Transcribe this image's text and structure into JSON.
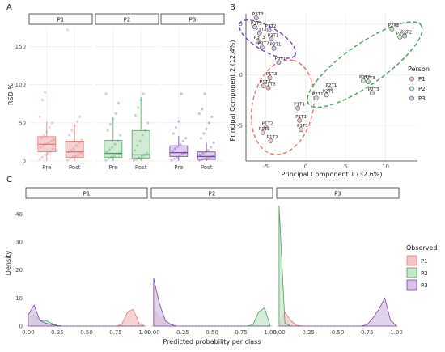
{
  "colors": {
    "P1": "#e07a7a",
    "P2": "#4f9e5f",
    "P3": "#7a43a8",
    "P1_light": "#f3c4c4",
    "P2_light": "#c7e6cb",
    "P3_light": "#d6c2e6",
    "grid": "#ebebeb",
    "strip_bg": "#ffffff",
    "frame": "#333333"
  },
  "panel_letters": {
    "a": "A",
    "b": "B",
    "c": "C"
  },
  "chart_data": [
    {
      "id": "A",
      "type": "box",
      "ylabel": "RSD %",
      "xlabel": "",
      "ylim": [
        0,
        175
      ],
      "yticks": [
        0,
        50,
        100,
        150
      ],
      "facets": [
        "P1",
        "P2",
        "P3"
      ],
      "categories": [
        "Pre",
        "Post"
      ],
      "boxes": [
        {
          "facet": "P1",
          "group": "Pre",
          "q1": 12,
          "median": 22,
          "q3": 32,
          "lower": 0,
          "upper": 52,
          "points": [
            2,
            5,
            8,
            10,
            12,
            15,
            18,
            20,
            22,
            24,
            26,
            28,
            30,
            34,
            38,
            44,
            50,
            58,
            80,
            90
          ]
        },
        {
          "facet": "P1",
          "group": "Post",
          "q1": 5,
          "median": 12,
          "q3": 26,
          "lower": 0,
          "upper": 48,
          "points": [
            1,
            3,
            5,
            6,
            8,
            10,
            12,
            14,
            16,
            20,
            24,
            28,
            34,
            40,
            46,
            52,
            58,
            172
          ]
        },
        {
          "facet": "P2",
          "group": "Pre",
          "q1": 5,
          "median": 10,
          "q3": 27,
          "lower": 0,
          "upper": 56,
          "points": [
            1,
            3,
            5,
            7,
            9,
            10,
            12,
            15,
            18,
            22,
            27,
            34,
            40,
            48,
            56,
            62,
            76,
            88
          ]
        },
        {
          "facet": "P2",
          "group": "Post",
          "q1": 4,
          "median": 8,
          "q3": 40,
          "lower": 0,
          "upper": 84,
          "points": [
            1,
            2,
            4,
            6,
            8,
            10,
            14,
            20,
            26,
            34,
            40,
            50,
            60,
            70,
            80,
            88
          ]
        },
        {
          "facet": "P3",
          "group": "Pre",
          "q1": 6,
          "median": 11,
          "q3": 20,
          "lower": 0,
          "upper": 33,
          "points": [
            1,
            3,
            5,
            7,
            9,
            11,
            13,
            16,
            19,
            22,
            26,
            30,
            36,
            44,
            52,
            88
          ]
        },
        {
          "facet": "P3",
          "group": "Post",
          "q1": 2,
          "median": 6,
          "q3": 12,
          "lower": 0,
          "upper": 24,
          "points": [
            1,
            2,
            3,
            4,
            5,
            6,
            8,
            10,
            12,
            14,
            18,
            24,
            30,
            36,
            42,
            50,
            58,
            62,
            68,
            88
          ]
        }
      ]
    },
    {
      "id": "B",
      "type": "scatter",
      "xlabel": "Principal Component 1 (32.6%)",
      "ylabel": "Principal Component 2 (12.4%)",
      "xlim": [
        -7.5,
        14
      ],
      "ylim": [
        -8.5,
        6
      ],
      "xticks": [
        -5,
        0,
        5,
        10
      ],
      "yticks": [
        -5,
        0,
        5
      ],
      "legend_title": "Person",
      "legend_position": "right",
      "series": [
        {
          "name": "P1",
          "points": [
            {
              "x": -4.5,
              "y": -0.3,
              "label": "P1T3"
            },
            {
              "x": -5.3,
              "y": -1.1,
              "label": "P1T2"
            },
            {
              "x": -4.7,
              "y": -1.3,
              "label": "P1T3"
            },
            {
              "x": -1.0,
              "y": -3.3,
              "label": "P1T1"
            },
            {
              "x": -0.8,
              "y": -4.5,
              "label": "P1T1"
            },
            {
              "x": -0.6,
              "y": -5.4,
              "label": "P1T1"
            },
            {
              "x": -5.0,
              "y": -5.2,
              "label": "P1T2"
            },
            {
              "x": -5.4,
              "y": -5.7,
              "label": "P1T2"
            },
            {
              "x": -4.4,
              "y": -6.5,
              "label": "P1T2"
            }
          ]
        },
        {
          "name": "P2",
          "points": [
            {
              "x": 10.8,
              "y": 4.5,
              "label": "P2T2"
            },
            {
              "x": 11.8,
              "y": 3.7,
              "label": "P2T2"
            },
            {
              "x": 12.4,
              "y": 3.8,
              "label": "P2T2"
            },
            {
              "x": 7.2,
              "y": -0.6,
              "label": "P2T3"
            },
            {
              "x": 7.8,
              "y": -0.7,
              "label": "P2T3"
            },
            {
              "x": 8.3,
              "y": -1.8,
              "label": "P2T3"
            },
            {
              "x": 3.0,
              "y": -1.4,
              "label": "P2T1"
            },
            {
              "x": 2.6,
              "y": -2.0,
              "label": "P2T1"
            },
            {
              "x": 1.3,
              "y": -2.3,
              "label": "P2T1"
            }
          ]
        },
        {
          "name": "P3",
          "points": [
            {
              "x": -6.2,
              "y": 5.6,
              "label": "P3T3"
            },
            {
              "x": -6.4,
              "y": 4.7,
              "label": "P3T3"
            },
            {
              "x": -5.8,
              "y": 4.1,
              "label": "P3T2"
            },
            {
              "x": -4.6,
              "y": 4.4,
              "label": "P3T2"
            },
            {
              "x": -4.3,
              "y": 3.5,
              "label": "P3T1"
            },
            {
              "x": -4.0,
              "y": 2.6,
              "label": "P3T1"
            },
            {
              "x": -3.4,
              "y": 1.2,
              "label": "P3T1"
            },
            {
              "x": -6.0,
              "y": 3.3,
              "label": "P3T3"
            },
            {
              "x": -5.5,
              "y": 2.7,
              "label": "P3T2"
            }
          ]
        }
      ],
      "ellipses": [
        {
          "series": "P1",
          "cx": -2.9,
          "cy": -3.2,
          "rx": 6.0,
          "ry": 3.0,
          "angle": 78
        },
        {
          "series": "P2",
          "cx": 7.4,
          "cy": 1.0,
          "rx": 8.6,
          "ry": 2.0,
          "angle": 35
        },
        {
          "series": "P3",
          "cx": -4.8,
          "cy": 3.5,
          "rx": 4.0,
          "ry": 1.2,
          "angle": -30
        }
      ],
      "point_labels": [
        "P3T3",
        "P3T3",
        "P3T2",
        "P3T2",
        "P3T1",
        "P3T1",
        "P3T1",
        "P3T3",
        "P3T2",
        "P2T2",
        "P2T2",
        "P2T2",
        "P2T3",
        "P2T3",
        "P2T3",
        "P2T1",
        "P2T1",
        "P2T1",
        "P1T3",
        "P1T2",
        "P1T3",
        "P1T1",
        "P1T1",
        "P1T1",
        "P1T2",
        "P1T2",
        "P1T2"
      ]
    },
    {
      "id": "C",
      "type": "area",
      "xlabel": "Predicted probability per class",
      "ylabel": "Density",
      "xlim": [
        -0.02,
        1.02
      ],
      "ylim": [
        0,
        45
      ],
      "xticks": [
        0.0,
        0.25,
        0.5,
        0.75,
        1.0
      ],
      "xtick_labels": [
        "0.00",
        "0.25",
        "0.50",
        "0.75",
        "1.00"
      ],
      "yticks": [
        0,
        10,
        20,
        30,
        40
      ],
      "facets": [
        "P1",
        "P2",
        "P3"
      ],
      "legend_title": "Observed",
      "legend_position": "right",
      "series_names": [
        "P1",
        "P2",
        "P3"
      ],
      "x": [
        0.0,
        0.05,
        0.1,
        0.15,
        0.2,
        0.25,
        0.3,
        0.35,
        0.4,
        0.45,
        0.5,
        0.55,
        0.6,
        0.65,
        0.7,
        0.75,
        0.8,
        0.85,
        0.9,
        0.95,
        1.0
      ],
      "panels": [
        {
          "facet": "P1",
          "series": [
            {
              "name": "P1",
              "values": [
                0,
                0,
                0,
                0,
                0,
                0,
                0,
                0,
                0,
                0,
                0,
                0,
                0,
                0,
                0,
                0,
                0.5,
                5,
                6,
                1,
                0
              ]
            },
            {
              "name": "P2",
              "values": [
                3,
                4,
                2,
                2,
                1,
                0.2,
                0,
                0,
                0,
                0,
                0,
                0,
                0,
                0,
                0,
                0,
                0,
                0,
                0,
                0,
                0
              ]
            },
            {
              "name": "P3",
              "values": [
                4,
                7.5,
                2,
                1,
                0.5,
                0.2,
                0,
                0,
                0,
                0,
                0,
                0,
                0,
                0,
                0,
                0,
                0,
                0,
                0,
                0,
                0
              ]
            }
          ]
        },
        {
          "facet": "P2",
          "series": [
            {
              "name": "P1",
              "values": [
                6,
                3,
                1.5,
                0.5,
                0,
                0,
                0,
                0,
                0,
                0,
                0,
                0,
                0,
                0,
                0,
                0,
                0,
                0,
                0,
                0,
                0
              ]
            },
            {
              "name": "P2",
              "values": [
                0,
                0,
                0,
                0,
                0,
                0,
                0,
                0,
                0,
                0,
                0,
                0,
                0,
                0,
                0,
                0,
                0,
                0.5,
                5,
                6.5,
                0
              ]
            },
            {
              "name": "P3",
              "values": [
                17,
                8,
                2,
                0.5,
                0,
                0,
                0,
                0,
                0,
                0,
                0,
                0,
                0,
                0,
                0,
                0,
                0,
                0,
                0,
                0,
                0
              ]
            }
          ]
        },
        {
          "facet": "P3",
          "series": [
            {
              "name": "P1",
              "values": [
                0,
                5,
                2,
                0.3,
                0,
                0,
                0,
                0,
                0,
                0,
                0,
                0,
                0,
                0,
                0,
                0,
                0,
                0,
                0,
                0,
                0
              ]
            },
            {
              "name": "P2",
              "values": [
                43,
                1,
                0,
                0,
                0,
                0,
                0,
                0,
                0,
                0,
                0,
                0,
                0,
                0,
                0,
                0,
                0,
                0,
                0,
                0,
                0
              ]
            },
            {
              "name": "P3",
              "values": [
                0,
                0,
                0,
                0,
                0,
                0,
                0,
                0,
                0,
                0,
                0,
                0,
                0,
                0,
                0,
                0.5,
                3,
                6,
                10,
                2,
                0
              ]
            }
          ]
        }
      ]
    }
  ]
}
